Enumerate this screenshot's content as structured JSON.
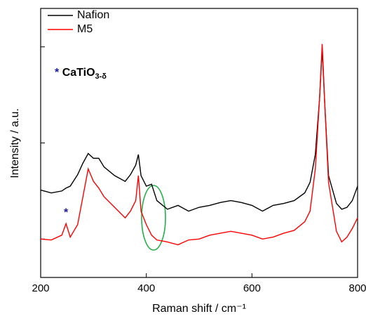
{
  "chart_data": {
    "type": "line",
    "x_label": "Raman shift / cm⁻¹",
    "y_label": "Intensity / a.u.",
    "x": [
      200,
      220,
      240,
      248,
      256,
      270,
      280,
      290,
      300,
      310,
      320,
      340,
      360,
      370,
      380,
      385,
      390,
      400,
      410,
      420,
      440,
      460,
      480,
      500,
      520,
      540,
      560,
      580,
      600,
      620,
      640,
      660,
      680,
      700,
      710,
      720,
      728,
      733,
      738,
      745,
      760,
      770,
      780,
      790,
      800
    ],
    "series": [
      {
        "name": "Nafion",
        "color": "#000000",
        "values": [
          1.51,
          1.48,
          1.5,
          1.53,
          1.55,
          1.67,
          1.79,
          1.89,
          1.84,
          1.84,
          1.75,
          1.66,
          1.6,
          1.67,
          1.77,
          1.88,
          1.66,
          1.55,
          1.57,
          1.4,
          1.31,
          1.35,
          1.29,
          1.33,
          1.35,
          1.38,
          1.4,
          1.38,
          1.35,
          1.29,
          1.35,
          1.37,
          1.4,
          1.48,
          1.59,
          1.88,
          2.46,
          2.98,
          2.39,
          1.66,
          1.37,
          1.31,
          1.33,
          1.4,
          1.55
        ]
      },
      {
        "name": "M5",
        "color": "#ff0000",
        "values": [
          1.0,
          0.99,
          1.04,
          1.16,
          1.02,
          1.15,
          1.44,
          1.73,
          1.6,
          1.53,
          1.44,
          1.33,
          1.22,
          1.29,
          1.4,
          1.66,
          1.29,
          1.15,
          1.04,
          0.99,
          0.97,
          0.94,
          0.99,
          1.0,
          1.04,
          1.06,
          1.08,
          1.06,
          1.04,
          1.0,
          1.02,
          1.06,
          1.09,
          1.18,
          1.29,
          1.73,
          2.46,
          3.03,
          2.39,
          1.59,
          1.08,
          0.97,
          1.02,
          1.11,
          1.22
        ]
      }
    ],
    "xlim": [
      200,
      800
    ],
    "xticks": [
      200,
      400,
      600,
      800
    ],
    "ylim": [
      0.6,
      3.4
    ],
    "yticks": [
      1,
      2,
      3
    ],
    "legend": "upper left",
    "marker_symbol": "*",
    "marker_color": "#1a1aa0",
    "marker_x": 248,
    "marker_y": 1.27,
    "marker_legend_label": "CaTiO",
    "marker_legend_subscript": "3-δ"
  }
}
